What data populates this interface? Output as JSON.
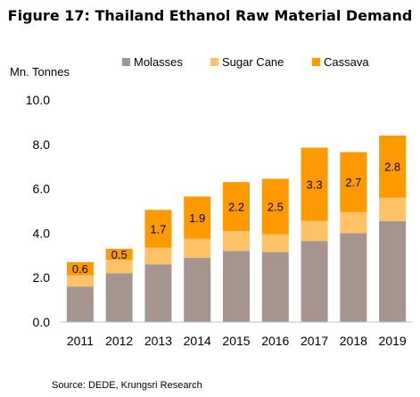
{
  "chart_data": {
    "type": "bar",
    "stacked": true,
    "title": "Figure 17: Thailand Ethanol Raw Material Demand",
    "ylabel": "Mn. Tonnes",
    "xlabel": "",
    "ylim": [
      0,
      10
    ],
    "yticks": [
      "0.0",
      "2.0",
      "4.0",
      "6.0",
      "8.0",
      "10.0"
    ],
    "grid": false,
    "legend_position": "top",
    "categories": [
      "2011",
      "2012",
      "2013",
      "2014",
      "2015",
      "2016",
      "2017",
      "2018",
      "2019"
    ],
    "series": [
      {
        "name": "Molasses",
        "color": "#A6958F",
        "values": [
          1.6,
          2.2,
          2.6,
          2.9,
          3.2,
          3.15,
          3.65,
          4.0,
          4.55
        ]
      },
      {
        "name": "Sugar Cane",
        "color": "#FFC266",
        "values": [
          0.5,
          0.6,
          0.75,
          0.85,
          0.9,
          0.8,
          0.9,
          0.95,
          1.05
        ]
      },
      {
        "name": "Cassava",
        "color": "#FF9900",
        "values": [
          0.6,
          0.5,
          1.7,
          1.9,
          2.2,
          2.5,
          3.3,
          2.7,
          2.8
        ]
      }
    ],
    "data_labels": {
      "series": "Cassava",
      "text": [
        "0.6",
        "0.5",
        "1.7",
        "1.9",
        "2.2",
        "2.5",
        "3.3",
        "2.7",
        "2.8"
      ]
    },
    "source": "Source: DEDE, Krungsri Research"
  }
}
